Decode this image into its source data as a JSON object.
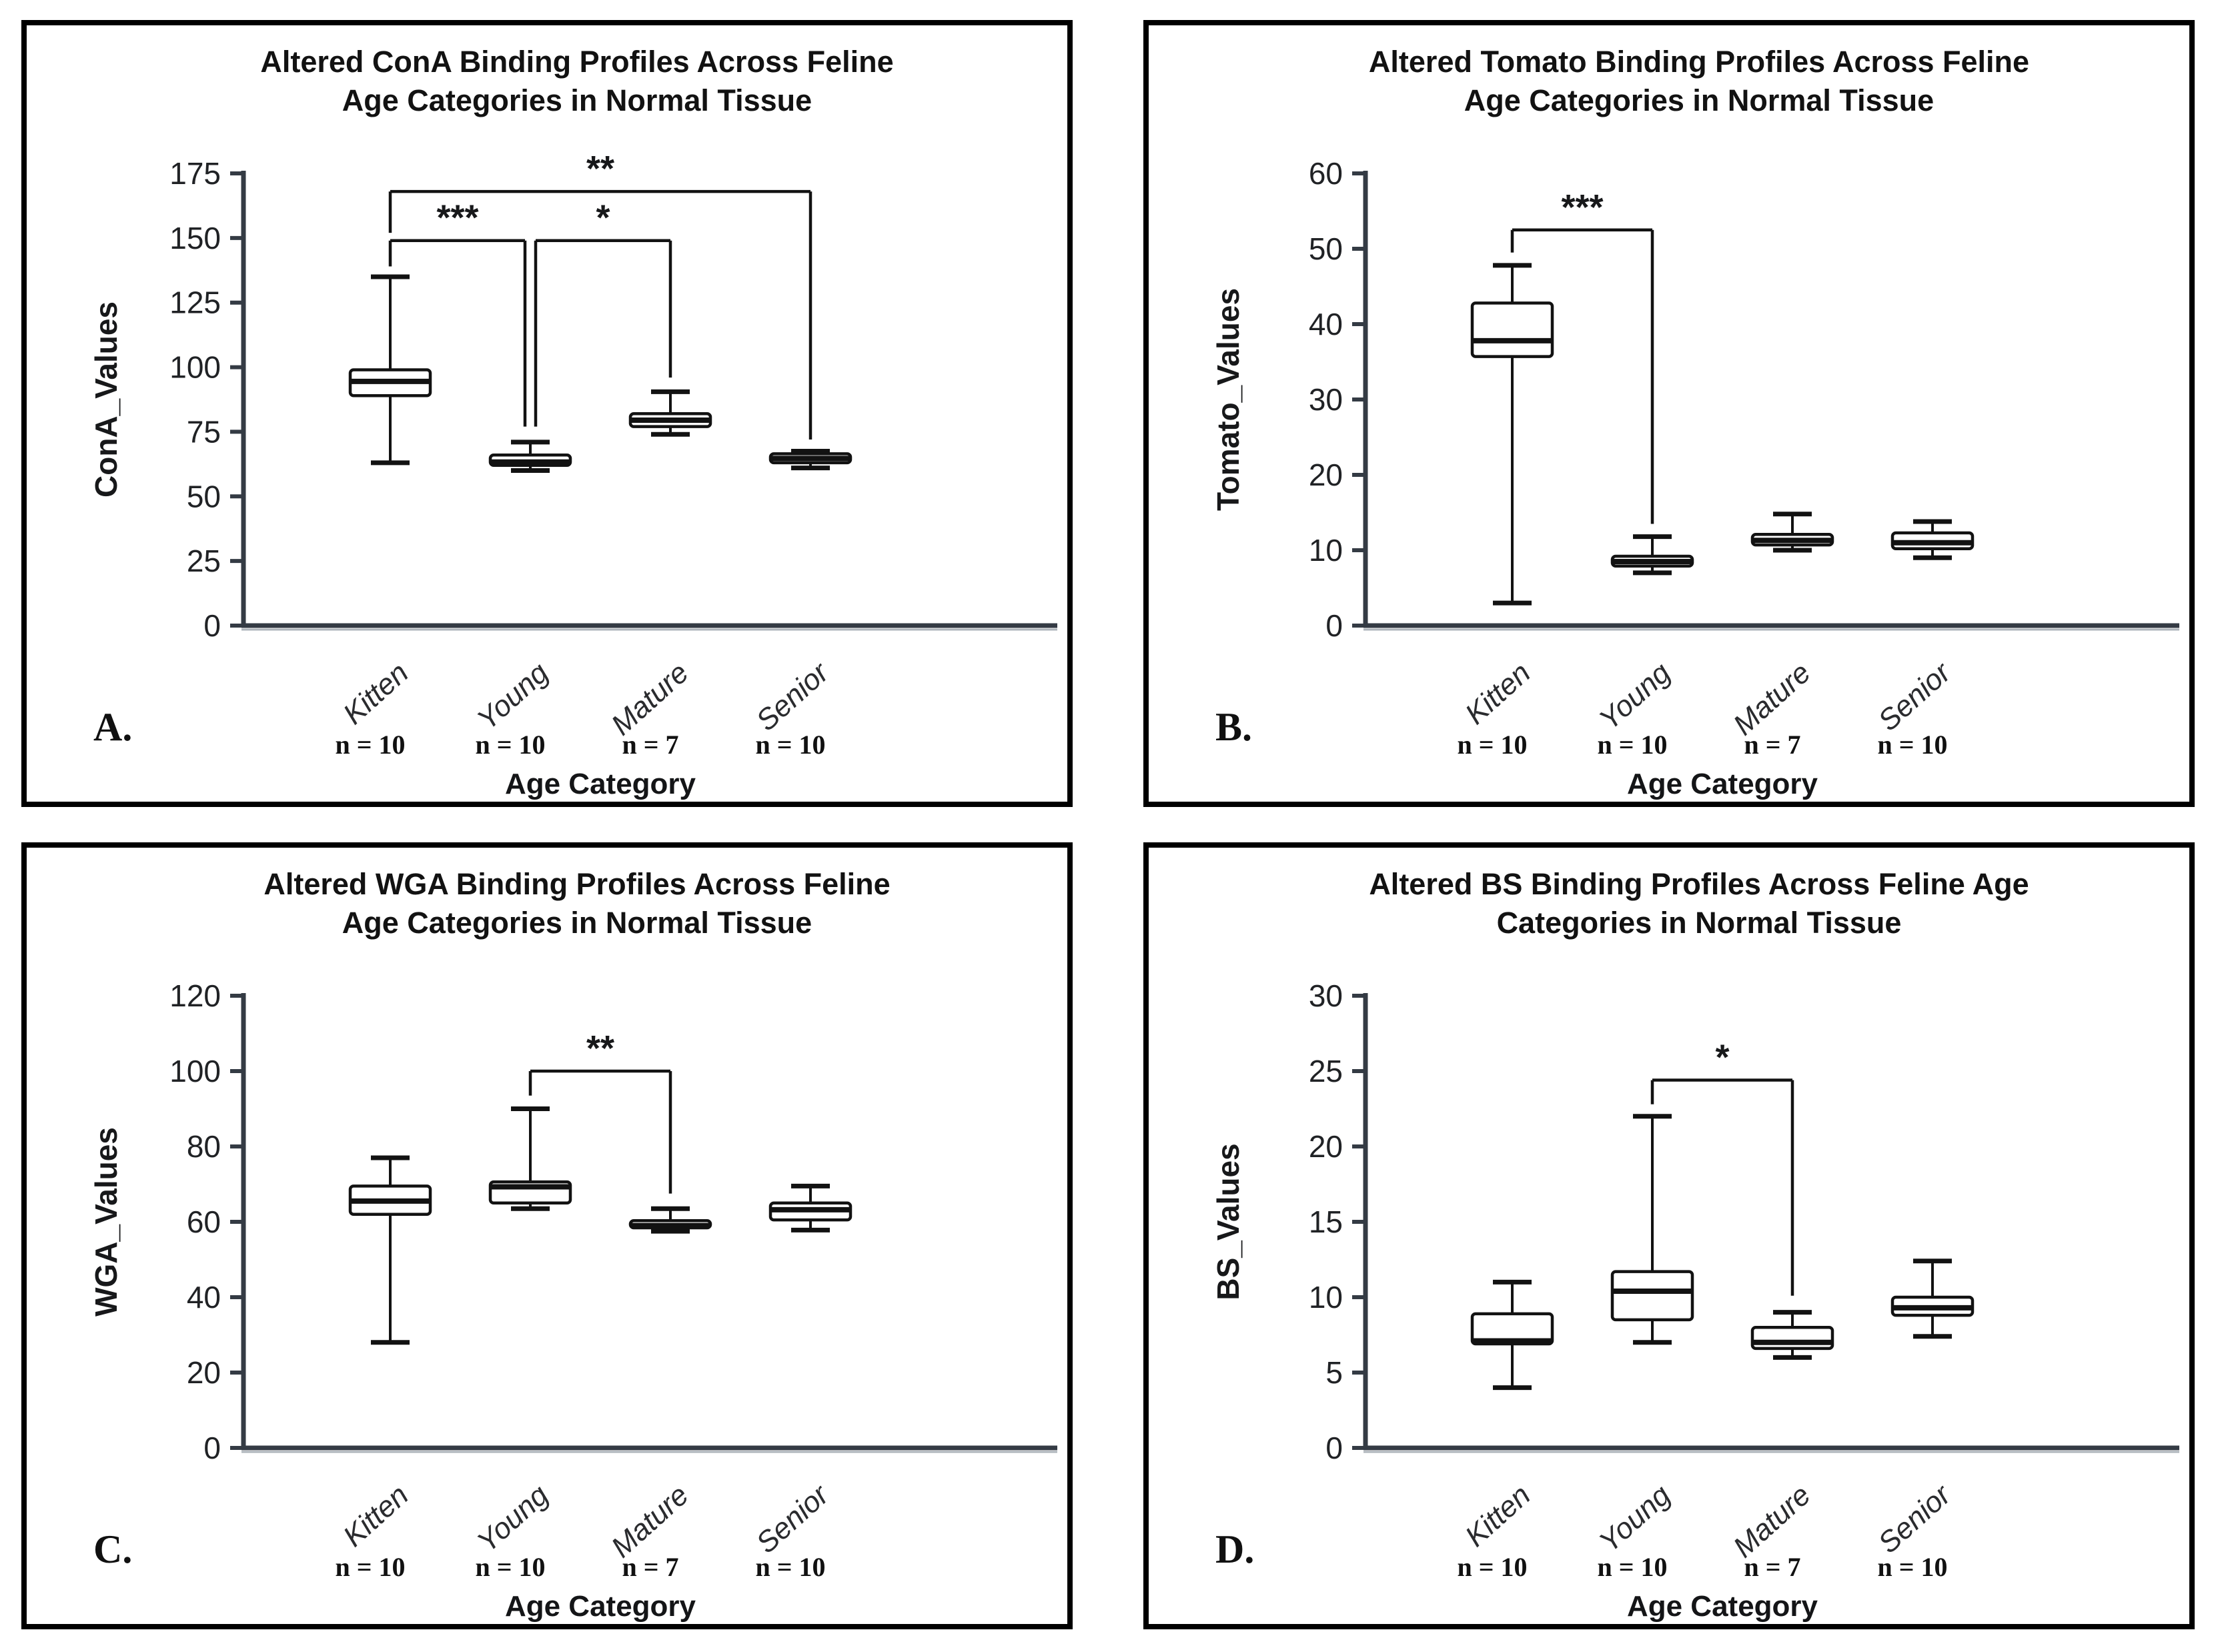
{
  "colors": {
    "background": "#ffffff",
    "panel_border": "#000000",
    "axis": "#343b44",
    "axis_shadow": "#aeb4bb",
    "ink": "#121212",
    "box_fill": "#ffffff"
  },
  "chart_data": [
    {
      "type": "box",
      "panel_letter": "A.",
      "title_lines": [
        "Altered ConA Binding Profiles Across Feline",
        "Age Categories in Normal Tissue"
      ],
      "ylabel": "ConA_Values",
      "xlabel": "Age Category",
      "ylim": [
        0,
        175
      ],
      "yticks": [
        0,
        25,
        50,
        75,
        100,
        125,
        150,
        175
      ],
      "grid": false,
      "categories": [
        "Kitten",
        "Young",
        "Mature",
        "Senior"
      ],
      "n_labels": [
        "n = 10",
        "n = 10",
        "n = 7",
        "n = 10"
      ],
      "boxes": [
        {
          "whislo": 63,
          "q1": 89,
          "med": 94.5,
          "q3": 99,
          "whishi": 135
        },
        {
          "whislo": 60,
          "q1": 62,
          "med": 63.3,
          "q3": 66,
          "whishi": 71
        },
        {
          "whislo": 74,
          "q1": 77,
          "med": 79.5,
          "q3": 82,
          "whishi": 90.5
        },
        {
          "whislo": 61,
          "q1": 63,
          "med": 64.7,
          "q3": 66.5,
          "whishi": 67.5
        }
      ],
      "significance": [
        {
          "from": 0,
          "to": 1,
          "label": "***",
          "bar_y": 149,
          "left_drop_to": 139,
          "right_drop_to": 77,
          "to_dx": -8
        },
        {
          "from": 1,
          "to": 2,
          "label": "*",
          "bar_y": 149,
          "left_drop_to": 77,
          "right_drop_to": 96,
          "from_dx": 8
        },
        {
          "from": 0,
          "to": 3,
          "label": "**",
          "bar_y": 168,
          "left_drop_to": 152,
          "right_drop_to": 72
        }
      ]
    },
    {
      "type": "box",
      "panel_letter": "B.",
      "title_lines": [
        "Altered Tomato Binding Profiles Across Feline",
        "Age Categories in Normal Tissue"
      ],
      "ylabel": "Tomato_Values",
      "xlabel": "Age Category",
      "ylim": [
        0,
        60
      ],
      "yticks": [
        0,
        10,
        20,
        30,
        40,
        50,
        60
      ],
      "grid": false,
      "categories": [
        "Kitten",
        "Young",
        "Mature",
        "Senior"
      ],
      "n_labels": [
        "n = 10",
        "n = 10",
        "n = 7",
        "n = 10"
      ],
      "boxes": [
        {
          "whislo": 3,
          "q1": 35.7,
          "med": 37.8,
          "q3": 42.8,
          "whishi": 47.8
        },
        {
          "whislo": 7,
          "q1": 7.9,
          "med": 8.5,
          "q3": 9.2,
          "whishi": 11.8
        },
        {
          "whislo": 10,
          "q1": 10.7,
          "med": 11.3,
          "q3": 12.1,
          "whishi": 14.8
        },
        {
          "whislo": 9,
          "q1": 10.2,
          "med": 11,
          "q3": 12.3,
          "whishi": 13.8
        }
      ],
      "significance": [
        {
          "from": 0,
          "to": 1,
          "label": "***",
          "bar_y": 52.5,
          "left_drop_to": 49.5,
          "right_drop_to": 13.5
        }
      ]
    },
    {
      "type": "box",
      "panel_letter": "C.",
      "title_lines": [
        "Altered WGA Binding Profiles Across Feline",
        "Age Categories in Normal Tissue"
      ],
      "ylabel": "WGA_Values",
      "xlabel": "Age Category",
      "ylim": [
        0,
        120
      ],
      "yticks": [
        0,
        20,
        40,
        60,
        80,
        100,
        120
      ],
      "grid": false,
      "categories": [
        "Kitten",
        "Young",
        "Mature",
        "Senior"
      ],
      "n_labels": [
        "n = 10",
        "n = 10",
        "n = 7",
        "n = 10"
      ],
      "boxes": [
        {
          "whislo": 28,
          "q1": 62,
          "med": 65.5,
          "q3": 69.5,
          "whishi": 77
        },
        {
          "whislo": 63.5,
          "q1": 65,
          "med": 69.3,
          "q3": 70.6,
          "whishi": 90
        },
        {
          "whislo": 57.5,
          "q1": 58.4,
          "med": 59,
          "q3": 60.3,
          "whishi": 63.5
        },
        {
          "whislo": 57.8,
          "q1": 60.5,
          "med": 63.2,
          "q3": 65,
          "whishi": 69.5
        }
      ],
      "significance": [
        {
          "from": 1,
          "to": 2,
          "label": "**",
          "bar_y": 100,
          "left_drop_to": 93.5,
          "right_drop_to": 67.5
        }
      ]
    },
    {
      "type": "box",
      "panel_letter": "D.",
      "title_lines": [
        "Altered BS Binding Profiles Across Feline Age",
        "Categories in Normal Tissue"
      ],
      "ylabel": "BS_Values",
      "xlabel": "Age Category",
      "ylim": [
        0,
        30
      ],
      "yticks": [
        0,
        5,
        10,
        15,
        20,
        25,
        30
      ],
      "grid": false,
      "categories": [
        "Kitten",
        "Young",
        "Mature",
        "Senior"
      ],
      "n_labels": [
        "n = 10",
        "n = 10",
        "n = 7",
        "n = 10"
      ],
      "boxes": [
        {
          "whislo": 4,
          "q1": 6.9,
          "med": 7.1,
          "q3": 8.9,
          "whishi": 11
        },
        {
          "whislo": 7,
          "q1": 8.5,
          "med": 10.4,
          "q3": 11.7,
          "whishi": 22
        },
        {
          "whislo": 6,
          "q1": 6.6,
          "med": 7,
          "q3": 8,
          "whishi": 9
        },
        {
          "whislo": 7.4,
          "q1": 8.8,
          "med": 9.3,
          "q3": 10,
          "whishi": 12.4
        }
      ],
      "significance": [
        {
          "from": 1,
          "to": 2,
          "label": "*",
          "bar_y": 24.4,
          "left_drop_to": 22.8,
          "right_drop_to": 10.1
        }
      ]
    }
  ]
}
